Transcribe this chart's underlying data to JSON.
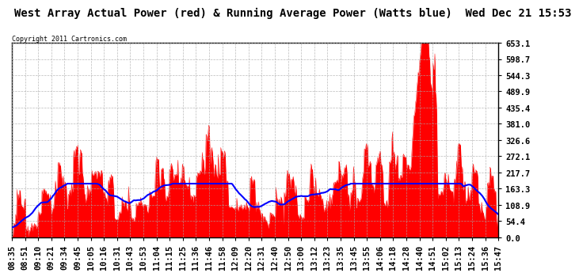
{
  "title": "West Array Actual Power (red) & Running Average Power (Watts blue)  Wed Dec 21 15:53",
  "copyright": "Copyright 2011 Cartronics.com",
  "ymax": 653.1,
  "yticks": [
    0.0,
    54.4,
    108.9,
    163.3,
    217.7,
    272.1,
    326.6,
    381.0,
    435.4,
    489.9,
    544.3,
    598.7,
    653.1
  ],
  "x_labels": [
    "08:35",
    "08:51",
    "09:10",
    "09:21",
    "09:34",
    "09:45",
    "10:05",
    "10:16",
    "10:31",
    "10:43",
    "10:53",
    "11:04",
    "11:15",
    "11:25",
    "11:36",
    "11:46",
    "11:58",
    "12:09",
    "12:20",
    "12:31",
    "12:40",
    "12:50",
    "13:00",
    "13:12",
    "13:23",
    "13:35",
    "13:45",
    "13:55",
    "14:06",
    "14:18",
    "14:28",
    "14:40",
    "14:51",
    "15:02",
    "15:13",
    "15:24",
    "15:36",
    "15:47"
  ],
  "background_color": "#ffffff",
  "plot_bg_color": "#ffffff",
  "grid_color": "#aaaaaa",
  "red_color": "#ff0000",
  "blue_color": "#0000ff",
  "title_fontsize": 10,
  "tick_fontsize": 7.5
}
